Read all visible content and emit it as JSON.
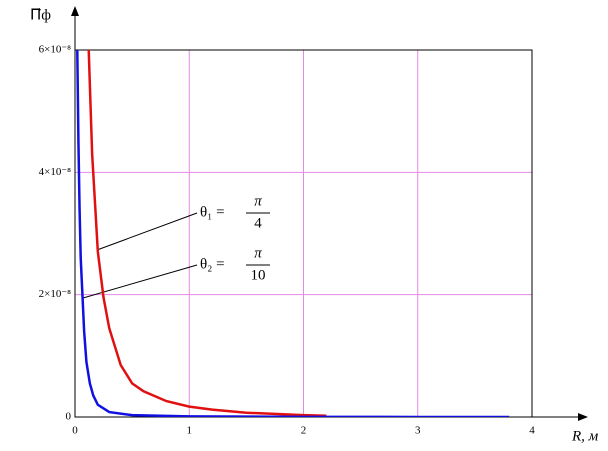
{
  "chart_data": {
    "type": "line",
    "y_label": "Π⃗ф",
    "x_label": "R, м",
    "xlim": [
      0,
      4
    ],
    "xticks": [
      0,
      1,
      2,
      3,
      4
    ],
    "ylim": [
      0,
      6e-08
    ],
    "yticks": [
      0,
      {
        "value": 2e-08,
        "label": "2×10⁻⁸"
      },
      {
        "value": 4e-08,
        "label": "4×10⁻⁸"
      },
      {
        "value": 6e-08,
        "label": "6×10⁻⁸"
      }
    ],
    "grid": true,
    "grid_color": "#e58ae5",
    "series": [
      {
        "color": "#e01010",
        "x": [
          0.12,
          0.15,
          0.2,
          0.25,
          0.3,
          0.4,
          0.5,
          0.6,
          0.8,
          1,
          1.2,
          1.5,
          2,
          2.2
        ],
        "values": [
          6e-08,
          4.3e-08,
          2.7e-08,
          1.95e-08,
          1.45e-08,
          8.5e-09,
          5.5e-09,
          4.2e-09,
          2.6e-09,
          1.7e-09,
          1.2e-09,
          7e-10,
          3e-10,
          2e-10
        ]
      },
      {
        "color": "#1010e0",
        "x": [
          0.02,
          0.03,
          0.04,
          0.05,
          0.065,
          0.08,
          0.1,
          0.13,
          0.16,
          0.2,
          0.3,
          0.5,
          1,
          2,
          3,
          3.8
        ],
        "values": [
          6e-08,
          4.5e-08,
          3.4e-08,
          2.6e-08,
          2e-08,
          1.4e-08,
          9e-09,
          5.5e-09,
          3.5e-09,
          2e-09,
          8e-10,
          3e-10,
          1e-10,
          3e-11,
          1e-11,
          5e-12
        ]
      }
    ],
    "annotations": [
      {
        "lhs": "θ₁ =",
        "num": "π",
        "den": "4"
      },
      {
        "lhs": "θ₂ =",
        "num": "π",
        "den": "10"
      }
    ]
  }
}
